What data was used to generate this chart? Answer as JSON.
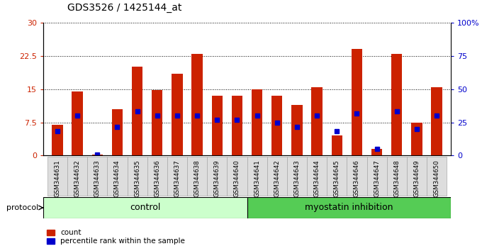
{
  "title": "GDS3526 / 1425144_at",
  "samples": [
    "GSM344631",
    "GSM344632",
    "GSM344633",
    "GSM344634",
    "GSM344635",
    "GSM344636",
    "GSM344637",
    "GSM344638",
    "GSM344639",
    "GSM344640",
    "GSM344641",
    "GSM344642",
    "GSM344643",
    "GSM344644",
    "GSM344645",
    "GSM344646",
    "GSM344647",
    "GSM344648",
    "GSM344649",
    "GSM344650"
  ],
  "red_values": [
    7.0,
    14.5,
    0.3,
    10.5,
    20.0,
    14.8,
    18.5,
    23.0,
    13.5,
    13.5,
    15.0,
    13.5,
    11.5,
    15.5,
    4.5,
    24.0,
    1.5,
    23.0,
    7.5,
    15.5
  ],
  "blue_values": [
    5.5,
    9.0,
    0.3,
    6.5,
    10.0,
    9.0,
    9.0,
    9.0,
    8.0,
    8.0,
    9.0,
    7.5,
    6.5,
    9.0,
    5.5,
    9.5,
    1.5,
    10.0,
    6.0,
    9.0
  ],
  "control_count": 10,
  "myostatin_count": 10,
  "ylim_left": [
    0,
    30
  ],
  "ylim_right": [
    0,
    100
  ],
  "yticks_left": [
    0,
    7.5,
    15,
    22.5,
    30
  ],
  "yticks_right": [
    0,
    25,
    50,
    75,
    100
  ],
  "ytick_labels_left": [
    "0",
    "7.5",
    "15",
    "22.5",
    "30"
  ],
  "ytick_labels_right": [
    "0",
    "25",
    "50",
    "75",
    "100%"
  ],
  "bar_color": "#cc2200",
  "marker_color": "#0000cc",
  "control_bg": "#ccffcc",
  "myostatin_bg": "#55cc55",
  "sample_label_bg": "#dddddd",
  "protocol_label": "protocol",
  "control_label": "control",
  "myostatin_label": "myostatin inhibition",
  "legend_red": "count",
  "legend_blue": "percentile rank within the sample",
  "bar_width": 0.55,
  "marker_size": 4.0
}
